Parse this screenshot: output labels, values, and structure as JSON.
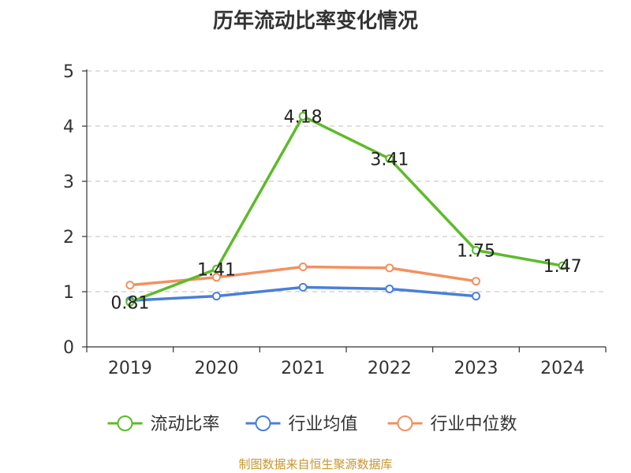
{
  "chart_data": {
    "type": "line",
    "title": "历年流动比率变化情况",
    "categories": [
      "2019",
      "2020",
      "2021",
      "2022",
      "2023",
      "2024"
    ],
    "ylim": [
      0,
      5
    ],
    "yticks": [
      0,
      1,
      2,
      3,
      4,
      5
    ],
    "grid": true,
    "legend_position": "bottom",
    "series": [
      {
        "name": "流动比率",
        "color": "#5dbb2a",
        "values": [
          0.81,
          1.41,
          4.18,
          3.41,
          1.75,
          1.47
        ],
        "labels": [
          "0.81",
          "1.41",
          "4.18",
          "3.41",
          "1.75",
          "1.47"
        ]
      },
      {
        "name": "行业均值",
        "color": "#4a7fd6",
        "values": [
          0.84,
          0.92,
          1.08,
          1.05,
          0.92,
          null
        ]
      },
      {
        "name": "行业中位数",
        "color": "#f29160",
        "values": [
          1.12,
          1.26,
          1.45,
          1.43,
          1.19,
          null
        ]
      }
    ],
    "source": "制图数据来自恒生聚源数据库"
  }
}
